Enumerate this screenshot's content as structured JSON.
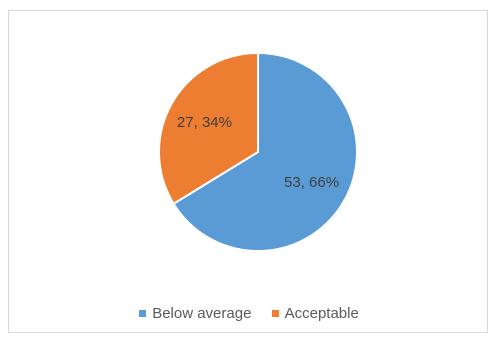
{
  "chart_data": {
    "type": "pie",
    "categories": [
      "Below average",
      "Acceptable"
    ],
    "values": [
      53,
      27
    ],
    "data_labels": [
      "53, 66%",
      "27, 34%"
    ],
    "colors": [
      "#5b9bd5",
      "#ed7d31"
    ],
    "legend_position": "bottom",
    "start_angle": "12 o'clock",
    "direction": "clockwise"
  }
}
